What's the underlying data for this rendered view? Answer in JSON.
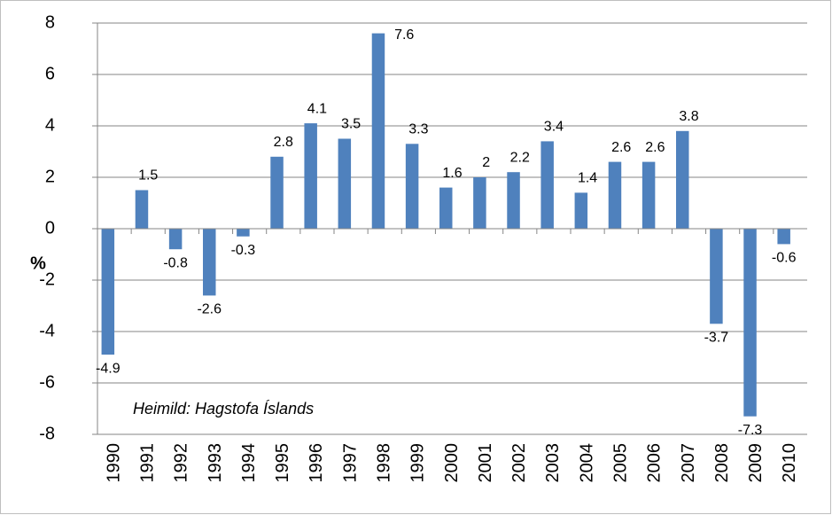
{
  "chart_data": {
    "type": "bar",
    "ylabel": "%",
    "note": "Heimild: Hagstofa Íslands",
    "categories": [
      "1990",
      "1991",
      "1992",
      "1993",
      "1994",
      "1995",
      "1996",
      "1997",
      "1998",
      "1999",
      "2000",
      "2001",
      "2002",
      "2003",
      "2004",
      "2005",
      "2006",
      "2007",
      "2008",
      "2009",
      "2010"
    ],
    "values": [
      -4.9,
      1.5,
      -0.8,
      -2.6,
      -0.3,
      2.8,
      4.1,
      3.5,
      7.6,
      3.3,
      1.6,
      2,
      2.2,
      3.4,
      1.4,
      2.6,
      2.6,
      3.8,
      -3.7,
      -7.3,
      -0.6
    ],
    "color": "#4f81bd",
    "ylim": [
      -8,
      8
    ],
    "yticks": [
      -8,
      -6,
      -4,
      -2,
      0,
      2,
      4,
      6,
      8
    ],
    "grid": true
  }
}
